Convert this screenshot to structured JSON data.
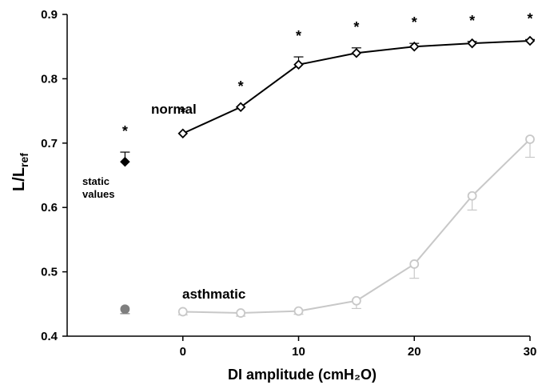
{
  "chart_data": {
    "type": "line",
    "xlabel": "DI amplitude (cmH₂O)",
    "ylabel": "L/L",
    "ylabel_sub": "ref",
    "xlim": [
      -10,
      30
    ],
    "ylim": [
      0.4,
      0.9
    ],
    "x_ticks": [
      0,
      10,
      20,
      30
    ],
    "y_ticks": [
      0.4,
      0.5,
      0.6,
      0.7,
      0.8,
      0.9
    ],
    "x_tick_labels": [
      "0",
      "10",
      "20",
      "30"
    ],
    "y_tick_labels": [
      "0.4",
      "0.5",
      "0.6",
      "0.7",
      "0.8",
      "0.9"
    ],
    "grid": false,
    "series": [
      {
        "name": "normal",
        "color": "#000000",
        "marker": "diamond-open",
        "x": [
          0,
          5,
          10,
          15,
          20,
          25,
          30
        ],
        "y": [
          0.715,
          0.756,
          0.822,
          0.84,
          0.85,
          0.855,
          0.859
        ],
        "error_up": [
          0.0,
          0.0,
          0.012,
          0.008,
          0.005,
          0.003,
          0.002
        ],
        "significance": [
          "*",
          "*",
          "*",
          "*",
          "*",
          "*",
          "*"
        ]
      },
      {
        "name": "asthmatic",
        "color": "#c8c8c8",
        "marker": "circle-open",
        "x": [
          0,
          5,
          10,
          15,
          20,
          25,
          30
        ],
        "y": [
          0.438,
          0.436,
          0.439,
          0.455,
          0.512,
          0.618,
          0.706
        ],
        "error_down": [
          0.005,
          0.005,
          0.005,
          0.012,
          0.022,
          0.022,
          0.028
        ]
      }
    ],
    "static_values": {
      "label_line1": "static",
      "label_line2": "values",
      "x": -5,
      "normal": {
        "y": 0.671,
        "error_up": 0.015,
        "significance": "*",
        "color": "#000000",
        "marker": "diamond-filled"
      },
      "asthmatic": {
        "y": 0.442,
        "error_down": 0.007,
        "color": "#7f7f7f",
        "marker": "circle-filled"
      }
    },
    "annotations": {
      "normal_label": "normal",
      "asthmatic_label": "asthmatic"
    }
  }
}
